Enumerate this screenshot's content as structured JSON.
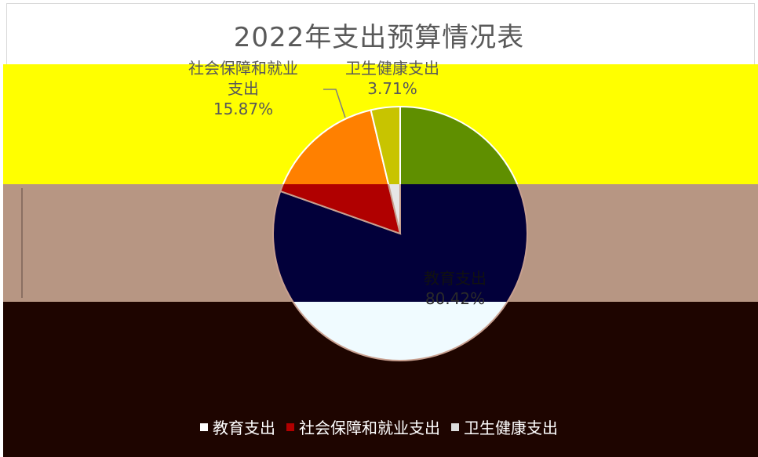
{
  "chart_data": {
    "type": "pie",
    "title": "2022年支出预算情况表",
    "slices": [
      {
        "name": "教育支出",
        "value": 80.42,
        "label": "80.42%",
        "color": "#5f8f00"
      },
      {
        "name": "社会保障和就业支出",
        "value": 15.87,
        "label": "15.87%",
        "color": "#ff8000"
      },
      {
        "name": "卫生健康支出",
        "value": 3.71,
        "label": "3.71%",
        "color": "#c8c400"
      }
    ],
    "legend_position": "bottom"
  },
  "labels": {
    "social_name_line1": "社会保障和就业",
    "social_name_line2": "支出",
    "social_pct": "15.87%",
    "health_name": "卫生健康支出",
    "health_pct": "3.71%",
    "edu_name": "教育支出",
    "edu_pct": "80.42%"
  },
  "legend": {
    "items": [
      {
        "label": "教育支出",
        "color": "#ffffff"
      },
      {
        "label": "社会保障和就业支出",
        "color": "#b00000"
      },
      {
        "label": "卫生健康支出",
        "color": "#dddddd"
      }
    ]
  },
  "colors": {
    "band_yellow": "#ffff00",
    "band_tan": "#b79683",
    "band_dark": "#1e0500",
    "pie_dark_overlay": "#02003a",
    "pie_light_overlay": "#f0fbff"
  }
}
